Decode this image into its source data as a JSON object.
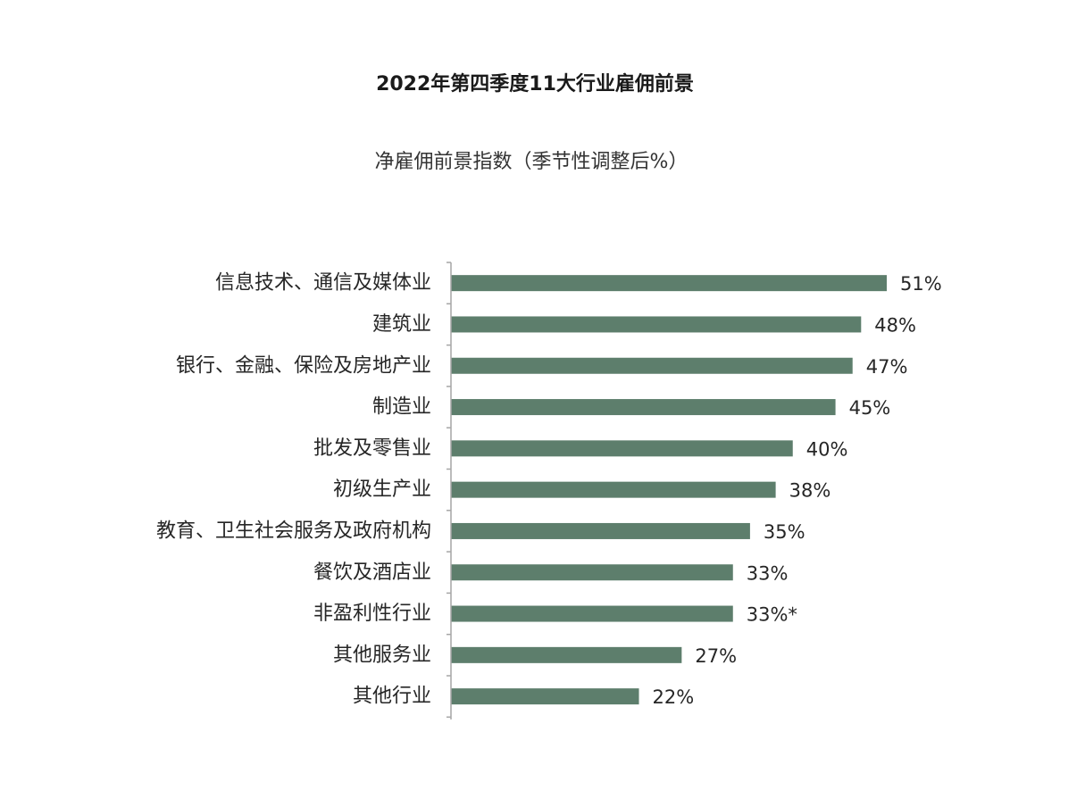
{
  "chart_data": {
    "type": "bar",
    "orientation": "horizontal",
    "title": "2022年第四季度11大行业雇佣前景",
    "subtitle": "净雇佣前景指数（季节性调整后%）",
    "categories": [
      "信息技术、通信及媒体业",
      "建筑业",
      "银行、金融、保险及房地产业",
      "制造业",
      "批发及零售业",
      "初级生产业",
      "教育、卫生社会服务及政府机构",
      "餐饮及酒店业",
      "非盈利性行业",
      "其他服务业",
      "其他行业"
    ],
    "values": [
      51,
      48,
      47,
      45,
      40,
      38,
      35,
      33,
      33,
      27,
      22
    ],
    "value_labels": [
      "51%",
      "48%",
      "47%",
      "45%",
      "40%",
      "38%",
      "35%",
      "33%",
      "33%*",
      "27%",
      "22%"
    ],
    "xlim": [
      0,
      52
    ],
    "grid": false,
    "legend": "none",
    "bar_color": "#5d7e6c"
  }
}
